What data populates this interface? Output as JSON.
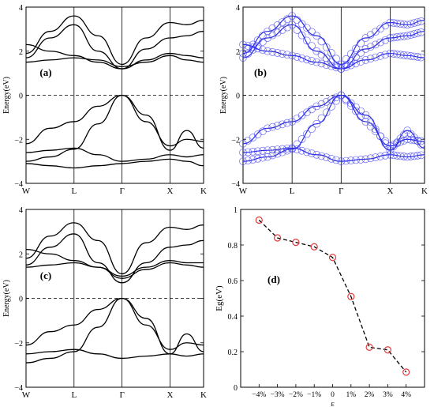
{
  "figure": {
    "panels": [
      {
        "id": "a",
        "label": "(a)",
        "kind": "band",
        "ylabel": "Energy(eV)",
        "yticks": [
          -4,
          -2,
          0,
          2,
          4
        ],
        "kpoints": [
          "W",
          "L",
          "Γ",
          "X",
          "K"
        ]
      },
      {
        "id": "b",
        "label": "(b)",
        "kind": "band-projected",
        "ylabel": "Energy(eV)",
        "yticks": [
          -4,
          -2,
          0,
          2,
          4
        ],
        "kpoints": [
          "W",
          "L",
          "Γ",
          "X",
          "K"
        ]
      },
      {
        "id": "c",
        "label": "(c)",
        "kind": "band",
        "ylabel": "Energy(eV)",
        "yticks": [
          -4,
          -2,
          0,
          2,
          4
        ],
        "kpoints": [
          "W",
          "L",
          "Γ",
          "X",
          "K"
        ]
      },
      {
        "id": "d",
        "label": "(d)",
        "kind": "line",
        "ylabel": "Eg(eV)",
        "xlabel": "ε"
      }
    ]
  },
  "chart_data": [
    {
      "type": "line",
      "panel": "a",
      "title": "",
      "xlabel": "",
      "ylabel": "Energy(eV)",
      "ylim": [
        -4,
        4
      ],
      "kpath": [
        "W",
        "L",
        "Γ",
        "X",
        "K"
      ],
      "kpath_positions": [
        0,
        1,
        2,
        3,
        3.7
      ],
      "fermi_level": 0,
      "series": [
        {
          "x": [
            0,
            0.5,
            1,
            1.5,
            2,
            2.5,
            3,
            3.35,
            3.7
          ],
          "y": [
            -3.0,
            -2.8,
            -2.45,
            -1.3,
            0,
            -1.2,
            -2.3,
            -2.0,
            -2.1
          ]
        },
        {
          "x": [
            0,
            0.5,
            1,
            1.5,
            2,
            2.5,
            3,
            3.35,
            3.7
          ],
          "y": [
            -2.2,
            -1.5,
            -1.2,
            -0.5,
            0,
            -0.9,
            -2.5,
            -1.6,
            -2.4
          ]
        },
        {
          "x": [
            0,
            0.5,
            1,
            1.5,
            2,
            2.5,
            3,
            3.35,
            3.7
          ],
          "y": [
            -2.6,
            -2.5,
            -2.4,
            -2.7,
            -3.0,
            -2.9,
            -2.7,
            -2.8,
            -2.7
          ]
        },
        {
          "x": [
            0,
            0.5,
            1,
            1.5,
            2,
            2.5,
            3,
            3.35,
            3.7
          ],
          "y": [
            -3.1,
            -3.2,
            -3.3,
            -3.2,
            -3.1,
            -3.0,
            -2.9,
            -3.0,
            -3.2
          ]
        },
        {
          "x": [
            0,
            0.5,
            1,
            1.5,
            2,
            2.5,
            3,
            3.35,
            3.7
          ],
          "y": [
            1.7,
            2.6,
            3.2,
            2.0,
            1.2,
            2.1,
            2.6,
            2.7,
            2.9
          ]
        },
        {
          "x": [
            0,
            0.5,
            1,
            1.5,
            2,
            2.5,
            3,
            3.35,
            3.7
          ],
          "y": [
            1.9,
            2.9,
            3.6,
            2.7,
            1.4,
            2.6,
            3.3,
            3.2,
            3.4
          ]
        },
        {
          "x": [
            0,
            0.5,
            1,
            1.5,
            2,
            2.5,
            3,
            3.35,
            3.7
          ],
          "y": [
            2.3,
            2.0,
            1.8,
            1.5,
            1.2,
            1.6,
            1.9,
            1.8,
            1.7
          ]
        },
        {
          "x": [
            0,
            0.5,
            1,
            1.5,
            2,
            2.5,
            3,
            3.35,
            3.7
          ],
          "y": [
            1.5,
            1.6,
            1.7,
            1.6,
            1.3,
            1.5,
            1.8,
            1.6,
            1.5
          ]
        }
      ]
    },
    {
      "type": "scatter",
      "panel": "b",
      "title": "",
      "xlabel": "",
      "ylabel": "Energy(eV)",
      "ylim": [
        -4,
        4
      ],
      "kpath": [
        "W",
        "L",
        "Γ",
        "X",
        "K"
      ],
      "kpath_positions": [
        0,
        1,
        2,
        3,
        3.7
      ],
      "fermi_level": 0,
      "marker": "open circle, blue",
      "series": [
        {
          "x": [
            0,
            0.5,
            1,
            1.5,
            2,
            2.5,
            3,
            3.35,
            3.7
          ],
          "y": [
            -3.0,
            -2.8,
            -2.45,
            -1.3,
            0,
            -1.2,
            -2.3,
            -2.0,
            -2.1
          ]
        },
        {
          "x": [
            0,
            0.5,
            1,
            1.5,
            2,
            2.5,
            3,
            3.35,
            3.7
          ],
          "y": [
            -2.2,
            -1.5,
            -1.2,
            -0.5,
            0,
            -0.9,
            -2.5,
            -1.6,
            -2.4
          ]
        },
        {
          "x": [
            0,
            0.5,
            1,
            1.5,
            2,
            2.5,
            3,
            3.35,
            3.7
          ],
          "y": [
            -2.6,
            -2.5,
            -2.4,
            -2.7,
            -3.0,
            -2.9,
            -2.7,
            -2.8,
            -2.7
          ]
        },
        {
          "x": [
            0,
            0.5,
            1,
            1.5,
            2,
            2.5,
            3,
            3.35,
            3.7
          ],
          "y": [
            1.7,
            2.6,
            3.2,
            2.0,
            1.2,
            2.1,
            2.6,
            2.7,
            2.9
          ]
        },
        {
          "x": [
            0,
            0.5,
            1,
            1.5,
            2,
            2.5,
            3,
            3.35,
            3.7
          ],
          "y": [
            1.9,
            2.9,
            3.6,
            2.7,
            1.4,
            2.6,
            3.3,
            3.2,
            3.4
          ]
        },
        {
          "x": [
            0,
            0.5,
            1,
            1.5,
            2,
            2.5,
            3,
            3.35,
            3.7
          ],
          "y": [
            2.3,
            2.0,
            1.8,
            1.5,
            1.2,
            1.6,
            1.9,
            1.8,
            1.7
          ]
        }
      ]
    },
    {
      "type": "line",
      "panel": "c",
      "title": "",
      "xlabel": "",
      "ylabel": "Energy(eV)",
      "ylim": [
        -4,
        4
      ],
      "kpath": [
        "W",
        "L",
        "Γ",
        "X",
        "K"
      ],
      "kpath_positions": [
        0,
        1,
        2,
        3,
        3.7
      ],
      "fermi_level": 0,
      "series": [
        {
          "x": [
            0,
            0.5,
            1,
            1.5,
            2,
            2.5,
            3,
            3.35,
            3.7
          ],
          "y": [
            -2.9,
            -2.7,
            -2.4,
            -1.3,
            0,
            -1.2,
            -2.3,
            -2.0,
            -2.1
          ]
        },
        {
          "x": [
            0,
            0.5,
            1,
            1.5,
            2,
            2.5,
            3,
            3.35,
            3.7
          ],
          "y": [
            -2.1,
            -1.5,
            -1.2,
            -0.5,
            0,
            -0.9,
            -2.5,
            -1.6,
            -2.4
          ]
        },
        {
          "x": [
            0,
            0.5,
            1,
            1.5,
            2,
            2.5,
            3,
            3.35,
            3.7
          ],
          "y": [
            -2.5,
            -2.4,
            -2.3,
            -2.5,
            -2.7,
            -2.6,
            -2.5,
            -2.6,
            -2.5
          ]
        },
        {
          "x": [
            0,
            0.5,
            1,
            1.5,
            2,
            2.5,
            3,
            3.35,
            3.7
          ],
          "y": [
            1.5,
            2.3,
            2.9,
            1.6,
            0.7,
            1.6,
            2.3,
            2.4,
            2.6
          ]
        },
        {
          "x": [
            0,
            0.5,
            1,
            1.5,
            2,
            2.5,
            3,
            3.35,
            3.7
          ],
          "y": [
            1.8,
            2.8,
            3.4,
            2.6,
            1.1,
            2.5,
            3.2,
            3.1,
            3.3
          ]
        },
        {
          "x": [
            0,
            0.5,
            1,
            1.5,
            2,
            2.5,
            3,
            3.35,
            3.7
          ],
          "y": [
            2.2,
            2.0,
            1.7,
            1.4,
            1.0,
            1.4,
            1.7,
            1.6,
            1.6
          ]
        },
        {
          "x": [
            0,
            0.5,
            1,
            1.5,
            2,
            2.5,
            3,
            3.35,
            3.7
          ],
          "y": [
            1.4,
            1.5,
            1.6,
            1.4,
            0.9,
            1.3,
            1.6,
            1.5,
            1.4
          ]
        }
      ]
    },
    {
      "type": "line",
      "panel": "d",
      "title": "",
      "xlabel": "ε",
      "ylabel": "Eg(eV)",
      "categories": [
        "-4%",
        "-3%",
        "-2%",
        "-1%",
        "0",
        "1%",
        "2%",
        "3%",
        "4%"
      ],
      "values": [
        0.94,
        0.84,
        0.815,
        0.79,
        0.73,
        0.51,
        0.225,
        0.21,
        0.085
      ],
      "yticks": [
        0,
        0.2,
        0.4,
        0.6,
        0.8,
        1
      ],
      "ylim": [
        0,
        1
      ],
      "line_style": "dashed",
      "marker": "open circle",
      "colors": {
        "line": "#000000",
        "marker": "#e23b3b"
      }
    }
  ]
}
